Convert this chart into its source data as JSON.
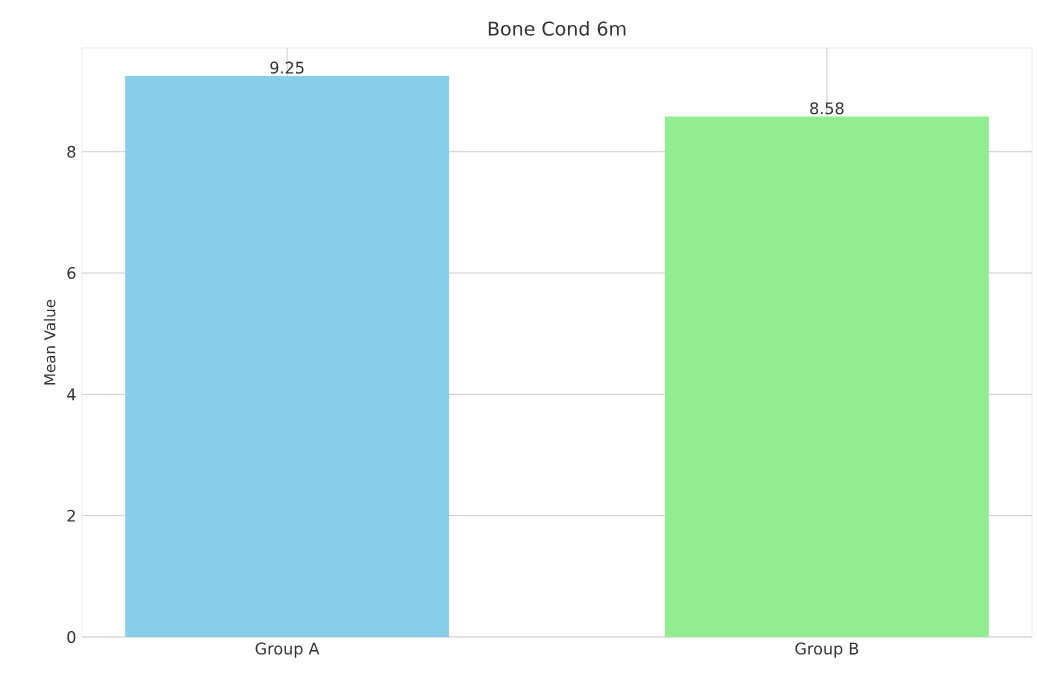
{
  "chart_data": {
    "type": "bar",
    "title": "Bone Cond 6m",
    "ylabel": "Mean Value",
    "categories": [
      "Group A",
      "Group B"
    ],
    "values": [
      9.25,
      8.58
    ],
    "colors": [
      "#87ceeb",
      "#90ee90"
    ],
    "ylim": [
      0,
      9.71
    ],
    "yticks": [
      0,
      2,
      4,
      6,
      8
    ],
    "grid": true,
    "data_labels": true
  }
}
